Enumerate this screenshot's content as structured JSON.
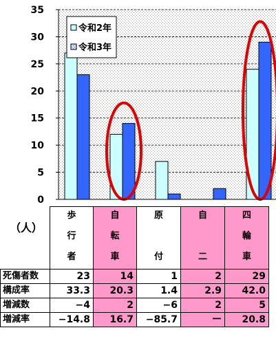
{
  "chart_data": {
    "type": "bar",
    "categories": [
      "歩行者",
      "自転車",
      "原付",
      "自二",
      "四輪車"
    ],
    "series": [
      {
        "name": "令和2年",
        "values": [
          27,
          12,
          7,
          0,
          24
        ],
        "color": "#ccffff"
      },
      {
        "name": "令和3年",
        "values": [
          23,
          14,
          1,
          2,
          29
        ],
        "color": "#3366ff"
      }
    ],
    "ylim": [
      0,
      35
    ],
    "yticks": [
      "0",
      "5",
      "10",
      "15",
      "20",
      "25",
      "30",
      "35"
    ],
    "title": "",
    "xlabel": "",
    "ylabel": "",
    "legend_position": "top-left",
    "highlight_color": "#e00000",
    "highlighted_categories": [
      "自転車",
      "四輪車"
    ]
  },
  "table": {
    "unit_label": "（人）",
    "columns": [
      {
        "chars": [
          "歩",
          "行",
          "者"
        ],
        "highlight": false
      },
      {
        "chars": [
          "自",
          "転",
          "車"
        ],
        "highlight": true
      },
      {
        "chars": [
          "原",
          "",
          "付"
        ],
        "highlight": false
      },
      {
        "chars": [
          "自",
          "",
          "二"
        ],
        "highlight": true
      },
      {
        "chars": [
          "四",
          "輪",
          "車"
        ],
        "highlight": true
      }
    ],
    "rows": [
      {
        "label": "死傷者数",
        "values": [
          "23",
          "14",
          "1",
          "2",
          "29"
        ]
      },
      {
        "label": "構成率",
        "values": [
          "33.3",
          "20.3",
          "1.4",
          "2.9",
          "42.0"
        ]
      },
      {
        "label": "増減数",
        "values": [
          "−4",
          "2",
          "−6",
          "2",
          "5"
        ]
      },
      {
        "label": "増減率",
        "values": [
          "−14.8",
          "16.7",
          "−85.7",
          "ー",
          "20.8"
        ]
      }
    ]
  }
}
